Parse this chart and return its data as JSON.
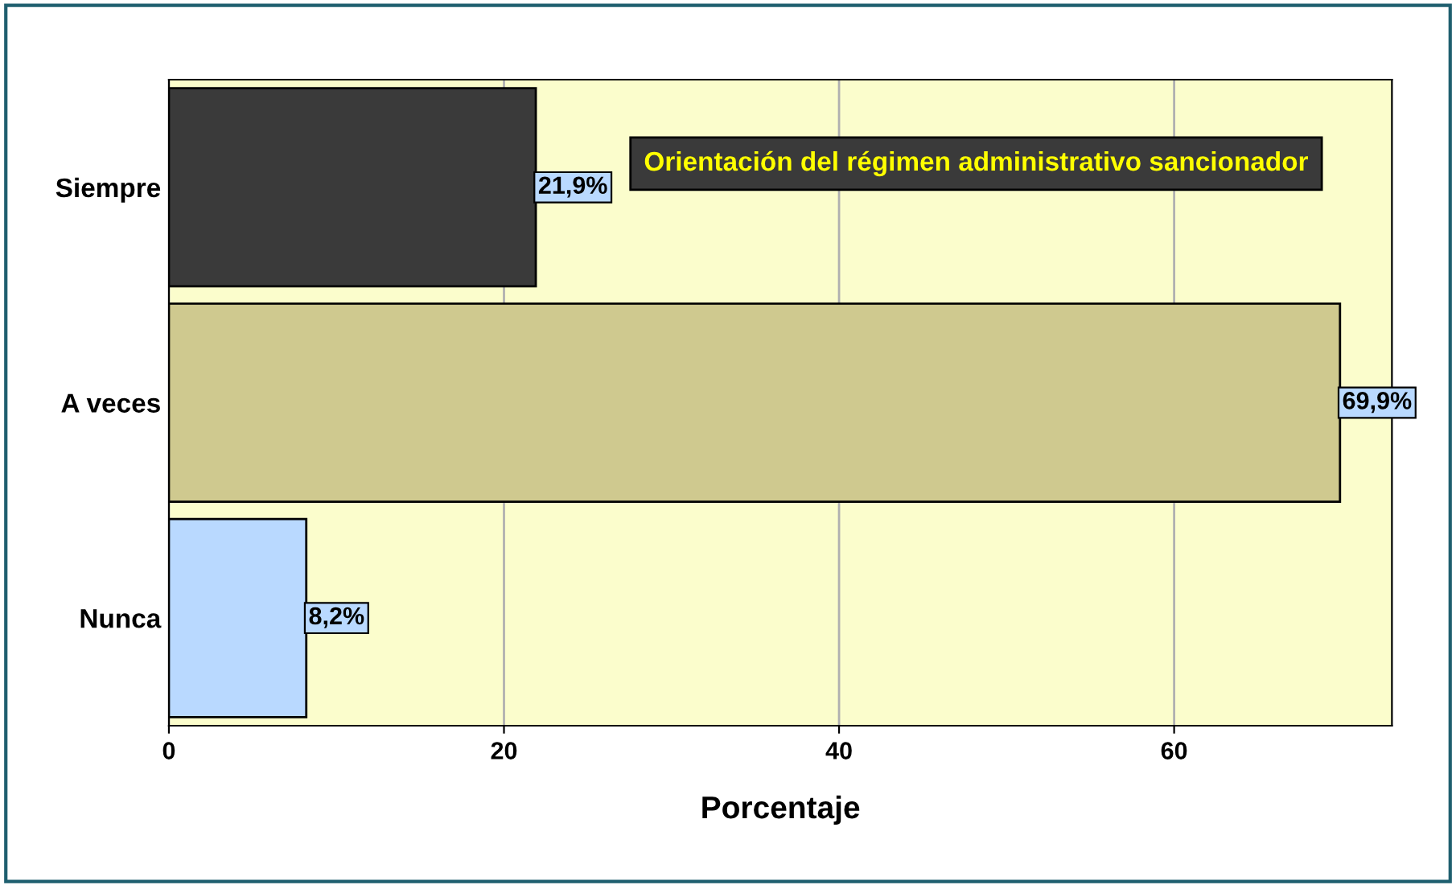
{
  "chart_data": {
    "type": "bar",
    "orientation": "horizontal",
    "title": "Orientación del régimen administrativo sancionador",
    "xlabel": "Porcentaje",
    "categories": [
      "Siempre",
      "A veces",
      "Nunca"
    ],
    "values": [
      21.9,
      69.9,
      8.2
    ],
    "colors": [
      "#3a3a3a",
      "#cfc98f",
      "#b9d9ff"
    ],
    "value_labels": [
      "21,9%",
      "69,9%",
      "8,2%"
    ],
    "xlim": [
      0,
      73
    ],
    "xticks": [
      0,
      20,
      40,
      60
    ],
    "grid": "x",
    "legend": false
  }
}
